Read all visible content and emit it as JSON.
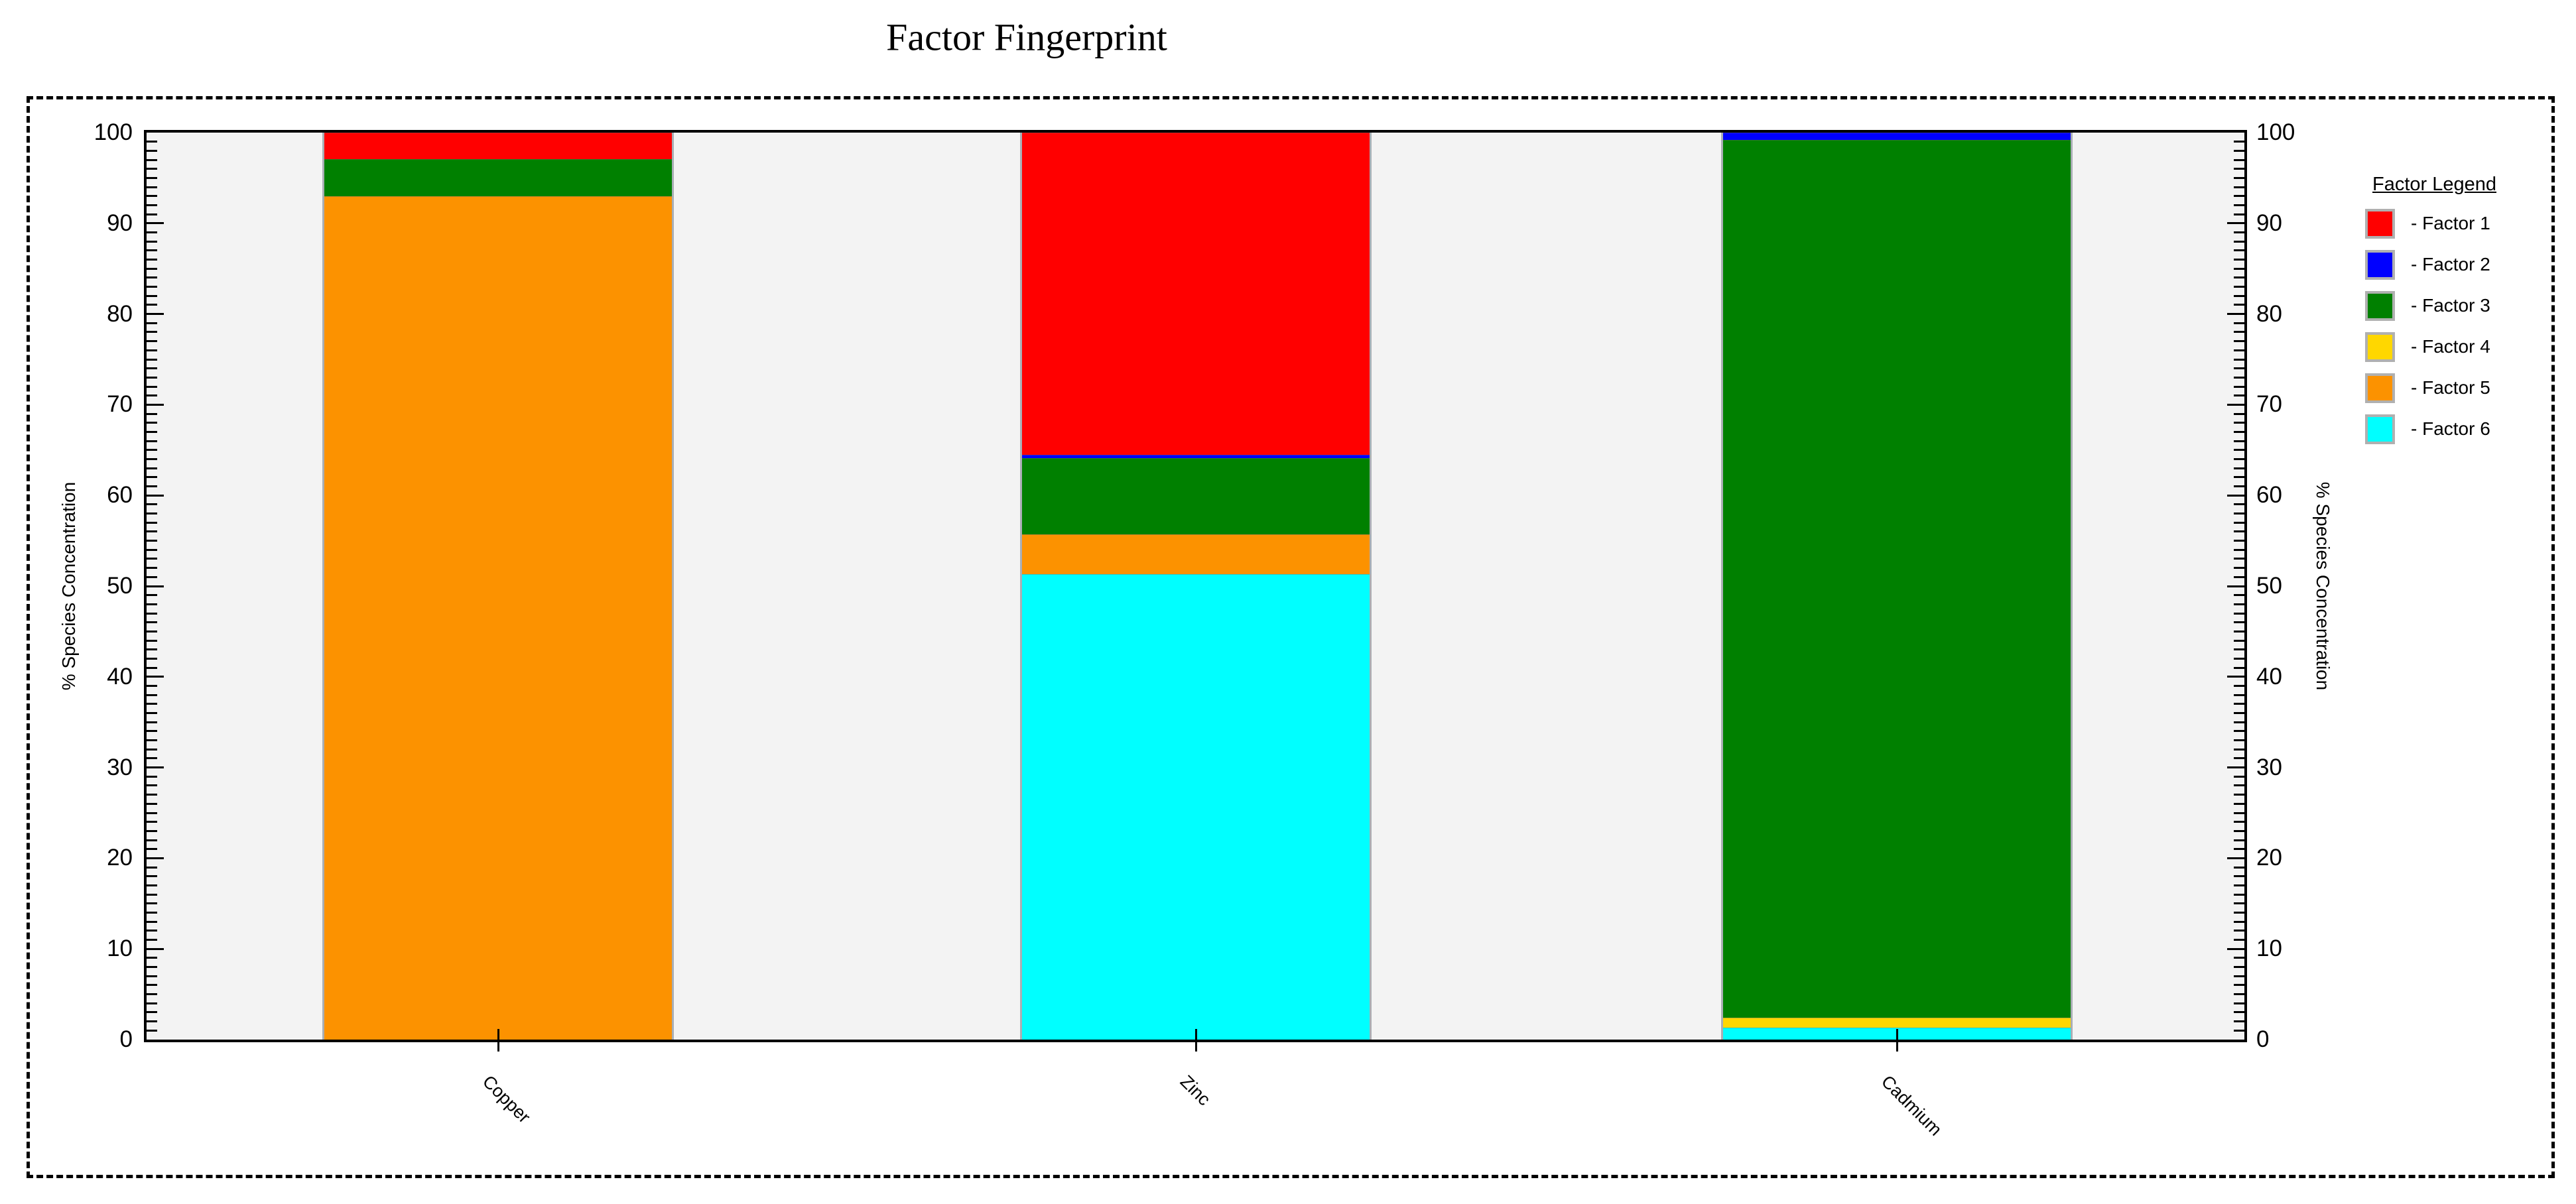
{
  "title": "Factor Fingerprint",
  "chart_data": {
    "type": "bar",
    "stacked": true,
    "title": "Factor Fingerprint",
    "categories": [
      "Copper",
      "Zinc",
      "Cadmium"
    ],
    "series": [
      {
        "name": "Factor 1",
        "color": "#ff0000",
        "values": [
          2.9,
          35.5,
          0
        ]
      },
      {
        "name": "Factor 2",
        "color": "#0000ff",
        "values": [
          0,
          0.4,
          0.8
        ]
      },
      {
        "name": "Factor 3",
        "color": "#008000",
        "values": [
          4.1,
          8.4,
          96.8
        ]
      },
      {
        "name": "Factor 4",
        "color": "#ffd700",
        "values": [
          0,
          0,
          1.1
        ]
      },
      {
        "name": "Factor 5",
        "color": "#fc9200",
        "values": [
          93.0,
          4.4,
          0
        ]
      },
      {
        "name": "Factor 6",
        "color": "#00ffff",
        "values": [
          0,
          51.3,
          1.3
        ]
      }
    ],
    "stack_order_top_to_bottom": [
      "Factor 1",
      "Factor 2",
      "Factor 3",
      "Factor 4",
      "Factor 5",
      "Factor 6"
    ],
    "ylabel_left": "% Species Concentration",
    "ylabel_right": "% Species Concentration",
    "ylim": [
      0,
      100
    ],
    "ytick_major": 10,
    "ytick_minor": 1,
    "ytick_labels": [
      "0",
      "10",
      "20",
      "30",
      "40",
      "50",
      "60",
      "70",
      "80",
      "90",
      "100"
    ],
    "grid": false,
    "plot_background": "#f3f3f3",
    "legend_position": "right",
    "legend_title": "Factor Legend",
    "legend_item_prefix": "- "
  }
}
